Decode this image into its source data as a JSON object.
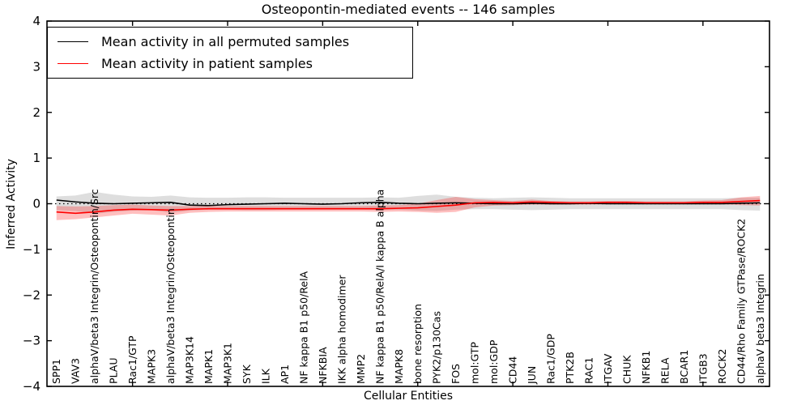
{
  "chart_data": {
    "type": "line",
    "title": "Osteopontin-mediated events -- 146 samples",
    "xlabel": "Cellular Entities",
    "ylabel": "Inferred Activity",
    "ylim": [
      -4,
      4
    ],
    "yticks": [
      -4,
      -3,
      -2,
      -1,
      0,
      1,
      2,
      3,
      4
    ],
    "ytick_labels": [
      "−4",
      "−3",
      "−2",
      "−1",
      "0",
      "1",
      "2",
      "3",
      "4"
    ],
    "grid": false,
    "legend_position": "upper left",
    "x_major_tick_every": 5,
    "reference_line": {
      "y": 0,
      "style": "dotted",
      "color": "#000000"
    },
    "categories": [
      "SPP1",
      "VAV3",
      "alphaV/beta3 Integrin/Osteopontin/Src",
      "PLAU",
      "Rac1/GTP",
      "MAPK3",
      "alphaV/beta3 Integrin/Osteopontin",
      "MAP3K14",
      "MAPK1",
      "MAP3K1",
      "SYK",
      "ILK",
      "AP1",
      "NF kappa B1 p50/RelA",
      "NFKBIA",
      "IKK alpha homodimer",
      "MMP2",
      "NF kappa B1 p50/RelA/I kappa B alpha",
      "MAPK8",
      "bone resorption",
      "PYK2/p130Cas",
      "FOS",
      "mol:GTP",
      "mol:GDP",
      "CD44",
      "JUN",
      "Rac1/GDP",
      "PTK2B",
      "RAC1",
      "ITGAV",
      "CHUK",
      "NFKB1",
      "RELA",
      "BCAR1",
      "ITGB3",
      "ROCK2",
      "CD44/Rho Family GTPase/ROCK2",
      "alphaV beta3 Integrin"
    ],
    "series": [
      {
        "name": "Mean activity in all permuted samples",
        "color": "#000000",
        "values": [
          0.08,
          0.04,
          0.01,
          0.0,
          0.01,
          0.02,
          0.03,
          -0.03,
          -0.04,
          -0.02,
          -0.01,
          0.0,
          0.01,
          0.0,
          -0.01,
          0.0,
          0.02,
          0.03,
          0.01,
          0.0,
          0.01,
          0.02,
          0.01,
          0.0,
          0.0,
          0.01,
          0.0,
          0.0,
          0.01,
          0.0,
          0.0,
          0.0,
          0.0,
          0.0,
          0.0,
          0.0,
          0.01,
          0.02
        ],
        "band": {
          "upper": [
            0.16,
            0.18,
            0.26,
            0.2,
            0.16,
            0.15,
            0.18,
            0.14,
            0.13,
            0.13,
            0.14,
            0.14,
            0.13,
            0.13,
            0.13,
            0.13,
            0.13,
            0.14,
            0.13,
            0.17,
            0.2,
            0.15,
            0.13,
            0.12,
            0.13,
            0.14,
            0.13,
            0.12,
            0.12,
            0.12,
            0.12,
            0.12,
            0.12,
            0.12,
            0.12,
            0.12,
            0.13,
            0.13
          ],
          "lower": [
            -0.14,
            -0.16,
            -0.22,
            -0.18,
            -0.15,
            -0.14,
            -0.2,
            -0.15,
            -0.13,
            -0.13,
            -0.14,
            -0.14,
            -0.13,
            -0.13,
            -0.13,
            -0.13,
            -0.13,
            -0.14,
            -0.13,
            -0.15,
            -0.16,
            -0.13,
            -0.12,
            -0.12,
            -0.13,
            -0.14,
            -0.13,
            -0.12,
            -0.12,
            -0.12,
            -0.12,
            -0.12,
            -0.12,
            -0.12,
            -0.12,
            -0.12,
            -0.14,
            -0.15
          ],
          "color": "rgba(0,0,0,0.13)"
        }
      },
      {
        "name": "Mean activity in patient samples",
        "color": "#ff0000",
        "values": [
          -0.18,
          -0.21,
          -0.18,
          -0.14,
          -0.12,
          -0.13,
          -0.14,
          -0.12,
          -0.11,
          -0.11,
          -0.11,
          -0.11,
          -0.11,
          -0.11,
          -0.11,
          -0.11,
          -0.11,
          -0.11,
          -0.1,
          -0.09,
          -0.06,
          -0.03,
          0.02,
          0.03,
          0.02,
          0.04,
          0.03,
          0.02,
          0.02,
          0.03,
          0.03,
          0.02,
          0.02,
          0.02,
          0.03,
          0.03,
          0.05,
          0.07
        ],
        "band": {
          "upper": [
            -0.05,
            -0.06,
            -0.05,
            -0.03,
            -0.02,
            -0.04,
            -0.05,
            -0.05,
            -0.05,
            -0.05,
            -0.05,
            -0.05,
            -0.05,
            -0.05,
            -0.05,
            -0.05,
            -0.05,
            -0.04,
            -0.03,
            0.0,
            0.08,
            0.15,
            0.1,
            0.08,
            0.06,
            0.09,
            0.06,
            0.05,
            0.05,
            0.06,
            0.06,
            0.05,
            0.05,
            0.05,
            0.07,
            0.08,
            0.14,
            0.17
          ],
          "lower": [
            -0.36,
            -0.34,
            -0.3,
            -0.26,
            -0.22,
            -0.24,
            -0.26,
            -0.2,
            -0.18,
            -0.17,
            -0.17,
            -0.17,
            -0.17,
            -0.17,
            -0.17,
            -0.17,
            -0.17,
            -0.18,
            -0.17,
            -0.18,
            -0.2,
            -0.18,
            -0.08,
            -0.04,
            -0.03,
            -0.02,
            -0.02,
            -0.02,
            -0.02,
            -0.01,
            -0.01,
            -0.01,
            -0.01,
            -0.01,
            -0.01,
            -0.01,
            -0.03,
            -0.04
          ],
          "color": "rgba(255,0,0,0.25)"
        }
      }
    ]
  }
}
